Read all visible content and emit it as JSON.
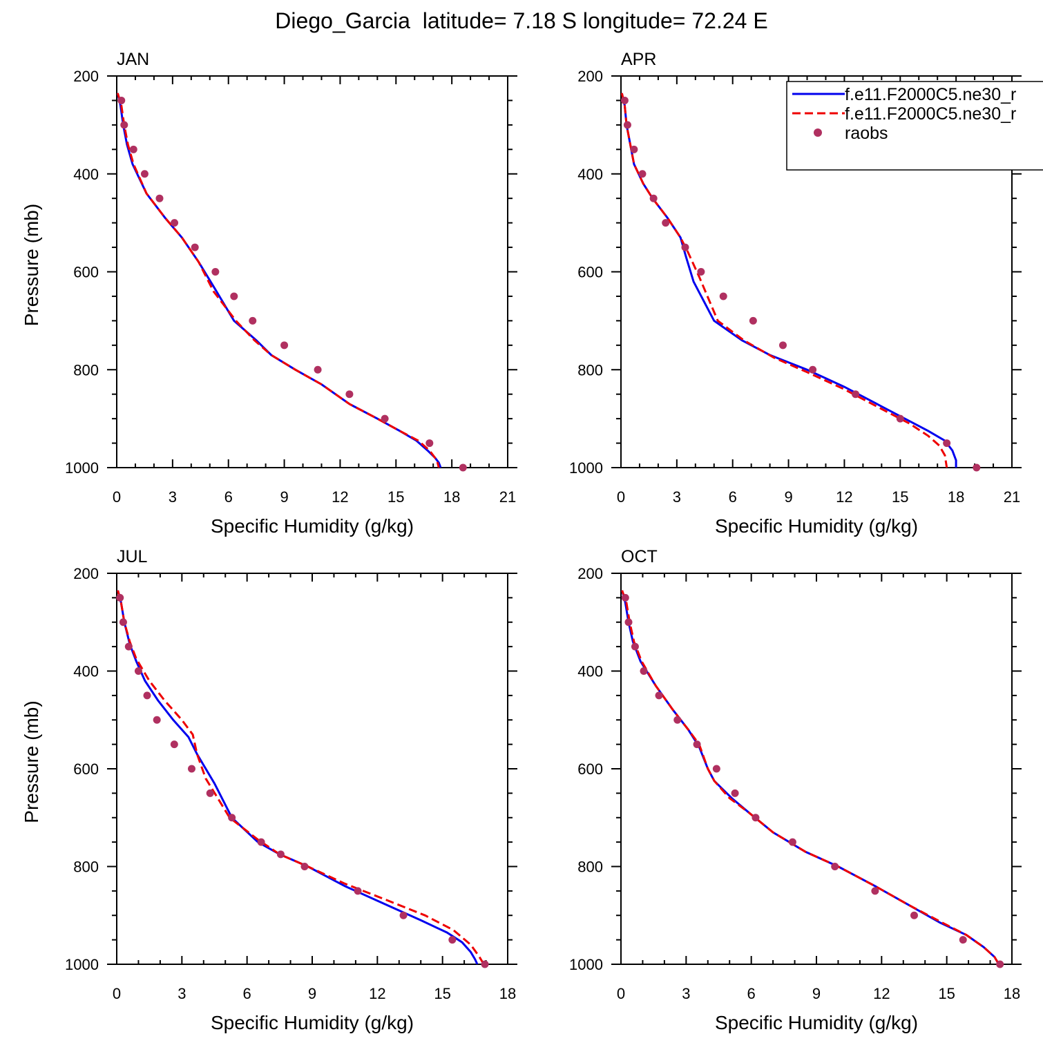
{
  "page_title": "Diego_Garcia  latitude= 7.18 S longitude= 72.24 E",
  "colors": {
    "model1": "#0000ee",
    "model2": "#ee0000",
    "raobs": "#b03060",
    "axis": "#000000"
  },
  "legend": {
    "entries": [
      {
        "label": "f.e11.F2000C5.ne30_r",
        "style": "solid",
        "color": "#0000ee"
      },
      {
        "label": "f.e11.F2000C5.ne30_r",
        "style": "dashed",
        "color": "#ee0000"
      },
      {
        "label": "raobs",
        "style": "marker",
        "color": "#b03060"
      }
    ]
  },
  "chart_data": [
    {
      "type": "line",
      "panel": "JAN",
      "xlabel": "Specific Humidity (g/kg)",
      "ylabel": "Pressure (mb)",
      "xlim": [
        0,
        21
      ],
      "ylim": [
        1000,
        200
      ],
      "y_inverted": true,
      "xticks": [
        0,
        3,
        6,
        9,
        12,
        15,
        18,
        21
      ],
      "yticks": [
        200,
        400,
        600,
        800,
        1000
      ],
      "series": [
        {
          "style": "solid",
          "color": "#0000ee",
          "points": [
            [
              0.05,
              235
            ],
            [
              0.2,
              260
            ],
            [
              0.35,
              300
            ],
            [
              0.55,
              340
            ],
            [
              0.85,
              380
            ],
            [
              1.6,
              440
            ],
            [
              2.6,
              490
            ],
            [
              3.5,
              530
            ],
            [
              4.4,
              580
            ],
            [
              5.2,
              630
            ],
            [
              6.3,
              700
            ],
            [
              7.5,
              740
            ],
            [
              8.3,
              770
            ],
            [
              9.6,
              800
            ],
            [
              11,
              830
            ],
            [
              12.5,
              870
            ],
            [
              14,
              900
            ],
            [
              15.2,
              925
            ],
            [
              16.1,
              945
            ],
            [
              16.7,
              965
            ],
            [
              17.1,
              980
            ],
            [
              17.3,
              990
            ],
            [
              17.4,
              1000
            ]
          ]
        },
        {
          "style": "dashed",
          "color": "#ee0000",
          "points": [
            [
              0.05,
              235
            ],
            [
              0.25,
              260
            ],
            [
              0.4,
              300
            ],
            [
              0.6,
              340
            ],
            [
              0.9,
              380
            ],
            [
              1.6,
              440
            ],
            [
              2.6,
              490
            ],
            [
              3.5,
              530
            ],
            [
              4.4,
              580
            ],
            [
              5.2,
              640
            ],
            [
              6.4,
              700
            ],
            [
              7.4,
              740
            ],
            [
              8.3,
              770
            ],
            [
              9.6,
              800
            ],
            [
              11,
              830
            ],
            [
              12.5,
              870
            ],
            [
              14,
              900
            ],
            [
              15.2,
              925
            ],
            [
              16.2,
              945
            ],
            [
              16.8,
              965
            ],
            [
              17.2,
              985
            ],
            [
              17.3,
              1000
            ]
          ]
        }
      ],
      "raobs": [
        [
          0.25,
          250
        ],
        [
          0.4,
          300
        ],
        [
          0.9,
          350
        ],
        [
          1.5,
          400
        ],
        [
          2.3,
          450
        ],
        [
          3.1,
          500
        ],
        [
          4.2,
          550
        ],
        [
          5.3,
          600
        ],
        [
          6.3,
          650
        ],
        [
          7.3,
          700
        ],
        [
          9.0,
          750
        ],
        [
          10.8,
          800
        ],
        [
          12.5,
          850
        ],
        [
          14.4,
          900
        ],
        [
          16.8,
          950
        ],
        [
          18.6,
          1000
        ]
      ]
    },
    {
      "type": "line",
      "panel": "APR",
      "xlabel": "Specific Humidity (g/kg)",
      "ylabel": "",
      "xlim": [
        0,
        21
      ],
      "ylim": [
        1000,
        200
      ],
      "y_inverted": true,
      "xticks": [
        0,
        3,
        6,
        9,
        12,
        15,
        18,
        21
      ],
      "yticks": [
        200,
        400,
        600,
        800,
        1000
      ],
      "series": [
        {
          "style": "solid",
          "color": "#0000ee",
          "points": [
            [
              0.05,
              235
            ],
            [
              0.2,
              260
            ],
            [
              0.3,
              300
            ],
            [
              0.5,
              340
            ],
            [
              0.7,
              380
            ],
            [
              1.2,
              420
            ],
            [
              1.7,
              450
            ],
            [
              2.5,
              490
            ],
            [
              3.2,
              530
            ],
            [
              3.5,
              570
            ],
            [
              3.9,
              620
            ],
            [
              5.0,
              700
            ],
            [
              6.5,
              740
            ],
            [
              8.0,
              770
            ],
            [
              10,
              800
            ],
            [
              12,
              835
            ],
            [
              14,
              875
            ],
            [
              15.5,
              905
            ],
            [
              16.5,
              925
            ],
            [
              17.4,
              945
            ],
            [
              17.8,
              965
            ],
            [
              18.0,
              985
            ],
            [
              18.0,
              1000
            ]
          ]
        },
        {
          "style": "dashed",
          "color": "#ee0000",
          "points": [
            [
              0.05,
              235
            ],
            [
              0.2,
              260
            ],
            [
              0.3,
              300
            ],
            [
              0.5,
              340
            ],
            [
              0.7,
              380
            ],
            [
              1.2,
              420
            ],
            [
              1.7,
              450
            ],
            [
              2.5,
              490
            ],
            [
              3.2,
              530
            ],
            [
              3.6,
              560
            ],
            [
              4.2,
              610
            ],
            [
              5.2,
              700
            ],
            [
              6.6,
              740
            ],
            [
              8.2,
              775
            ],
            [
              10,
              805
            ],
            [
              12,
              840
            ],
            [
              14,
              880
            ],
            [
              15.5,
              910
            ],
            [
              16.5,
              935
            ],
            [
              17.1,
              955
            ],
            [
              17.4,
              975
            ],
            [
              17.5,
              1000
            ]
          ]
        }
      ],
      "raobs": [
        [
          0.2,
          250
        ],
        [
          0.35,
          300
        ],
        [
          0.7,
          350
        ],
        [
          1.15,
          400
        ],
        [
          1.75,
          450
        ],
        [
          2.4,
          500
        ],
        [
          3.45,
          550
        ],
        [
          4.3,
          600
        ],
        [
          5.5,
          650
        ],
        [
          7.1,
          700
        ],
        [
          8.7,
          750
        ],
        [
          10.3,
          800
        ],
        [
          12.6,
          850
        ],
        [
          15.0,
          900
        ],
        [
          17.5,
          950
        ],
        [
          19.1,
          1000
        ]
      ]
    },
    {
      "type": "line",
      "panel": "JUL",
      "xlabel": "Specific Humidity (g/kg)",
      "ylabel": "Pressure (mb)",
      "xlim": [
        0,
        18
      ],
      "ylim": [
        1000,
        200
      ],
      "y_inverted": true,
      "xticks": [
        0,
        3,
        6,
        9,
        12,
        15,
        18
      ],
      "yticks": [
        200,
        400,
        600,
        800,
        1000
      ],
      "series": [
        {
          "style": "solid",
          "color": "#0000ee",
          "points": [
            [
              0.05,
              235
            ],
            [
              0.2,
              260
            ],
            [
              0.35,
              300
            ],
            [
              0.6,
              345
            ],
            [
              0.9,
              380
            ],
            [
              1.3,
              420
            ],
            [
              1.9,
              460
            ],
            [
              2.6,
              500
            ],
            [
              3.3,
              535
            ],
            [
              3.7,
              570
            ],
            [
              4.5,
              630
            ],
            [
              5.3,
              700
            ],
            [
              6.5,
              750
            ],
            [
              7.5,
              775
            ],
            [
              8.8,
              800
            ],
            [
              10.5,
              840
            ],
            [
              12.5,
              880
            ],
            [
              14,
              910
            ],
            [
              15.2,
              935
            ],
            [
              15.9,
              955
            ],
            [
              16.3,
              975
            ],
            [
              16.5,
              990
            ],
            [
              16.6,
              1000
            ]
          ]
        },
        {
          "style": "dashed",
          "color": "#ee0000",
          "points": [
            [
              0.05,
              235
            ],
            [
              0.2,
              260
            ],
            [
              0.35,
              300
            ],
            [
              0.6,
              340
            ],
            [
              0.9,
              375
            ],
            [
              1.5,
              420
            ],
            [
              2.2,
              460
            ],
            [
              3.0,
              500
            ],
            [
              3.5,
              530
            ],
            [
              3.7,
              570
            ],
            [
              4.1,
              620
            ],
            [
              5.2,
              700
            ],
            [
              6.5,
              745
            ],
            [
              7.5,
              775
            ],
            [
              8.8,
              800
            ],
            [
              10.5,
              835
            ],
            [
              12.5,
              870
            ],
            [
              14.2,
              900
            ],
            [
              15.5,
              930
            ],
            [
              16.3,
              960
            ],
            [
              16.7,
              985
            ],
            [
              16.9,
              1000
            ]
          ]
        }
      ],
      "raobs": [
        [
          0.15,
          250
        ],
        [
          0.3,
          300
        ],
        [
          0.55,
          350
        ],
        [
          1.0,
          400
        ],
        [
          1.4,
          450
        ],
        [
          1.85,
          500
        ],
        [
          2.65,
          550
        ],
        [
          3.45,
          600
        ],
        [
          4.3,
          650
        ],
        [
          5.3,
          700
        ],
        [
          6.65,
          750
        ],
        [
          7.55,
          775
        ],
        [
          8.65,
          800
        ],
        [
          11.1,
          850
        ],
        [
          13.2,
          900
        ],
        [
          15.45,
          950
        ],
        [
          16.95,
          1000
        ]
      ]
    },
    {
      "type": "line",
      "panel": "OCT",
      "xlabel": "Specific Humidity (g/kg)",
      "ylabel": "",
      "xlim": [
        0,
        18
      ],
      "ylim": [
        1000,
        200
      ],
      "y_inverted": true,
      "xticks": [
        0,
        3,
        6,
        9,
        12,
        15,
        18
      ],
      "yticks": [
        200,
        400,
        600,
        800,
        1000
      ],
      "series": [
        {
          "style": "solid",
          "color": "#0000ee",
          "points": [
            [
              0.05,
              235
            ],
            [
              0.2,
              260
            ],
            [
              0.35,
              300
            ],
            [
              0.55,
              340
            ],
            [
              0.9,
              380
            ],
            [
              1.6,
              430
            ],
            [
              2.4,
              480
            ],
            [
              3.1,
              520
            ],
            [
              3.6,
              555
            ],
            [
              4.0,
              600
            ],
            [
              4.3,
              625
            ],
            [
              5.1,
              660
            ],
            [
              5.9,
              690
            ],
            [
              7.0,
              730
            ],
            [
              8.5,
              770
            ],
            [
              10,
              800
            ],
            [
              11.7,
              840
            ],
            [
              13.3,
              880
            ],
            [
              14.7,
              915
            ],
            [
              15.9,
              940
            ],
            [
              16.7,
              965
            ],
            [
              17.2,
              985
            ],
            [
              17.4,
              1000
            ]
          ]
        },
        {
          "style": "dashed",
          "color": "#ee0000",
          "points": [
            [
              0.05,
              235
            ],
            [
              0.25,
              260
            ],
            [
              0.4,
              300
            ],
            [
              0.6,
              340
            ],
            [
              0.95,
              380
            ],
            [
              1.6,
              430
            ],
            [
              2.4,
              480
            ],
            [
              3.1,
              520
            ],
            [
              3.6,
              550
            ],
            [
              4.0,
              600
            ],
            [
              4.3,
              625
            ],
            [
              5.0,
              660
            ],
            [
              5.9,
              690
            ],
            [
              7.0,
              730
            ],
            [
              8.5,
              770
            ],
            [
              10,
              800
            ],
            [
              11.7,
              840
            ],
            [
              13.3,
              880
            ],
            [
              14.8,
              915
            ],
            [
              15.9,
              940
            ],
            [
              16.7,
              965
            ],
            [
              17.2,
              985
            ],
            [
              17.4,
              1000
            ]
          ]
        }
      ],
      "raobs": [
        [
          0.2,
          250
        ],
        [
          0.35,
          300
        ],
        [
          0.65,
          350
        ],
        [
          1.05,
          400
        ],
        [
          1.75,
          450
        ],
        [
          2.6,
          500
        ],
        [
          3.5,
          550
        ],
        [
          4.4,
          600
        ],
        [
          5.25,
          650
        ],
        [
          6.2,
          700
        ],
        [
          7.9,
          750
        ],
        [
          9.85,
          800
        ],
        [
          11.7,
          850
        ],
        [
          13.5,
          900
        ],
        [
          15.75,
          950
        ],
        [
          17.45,
          1000
        ]
      ]
    }
  ]
}
